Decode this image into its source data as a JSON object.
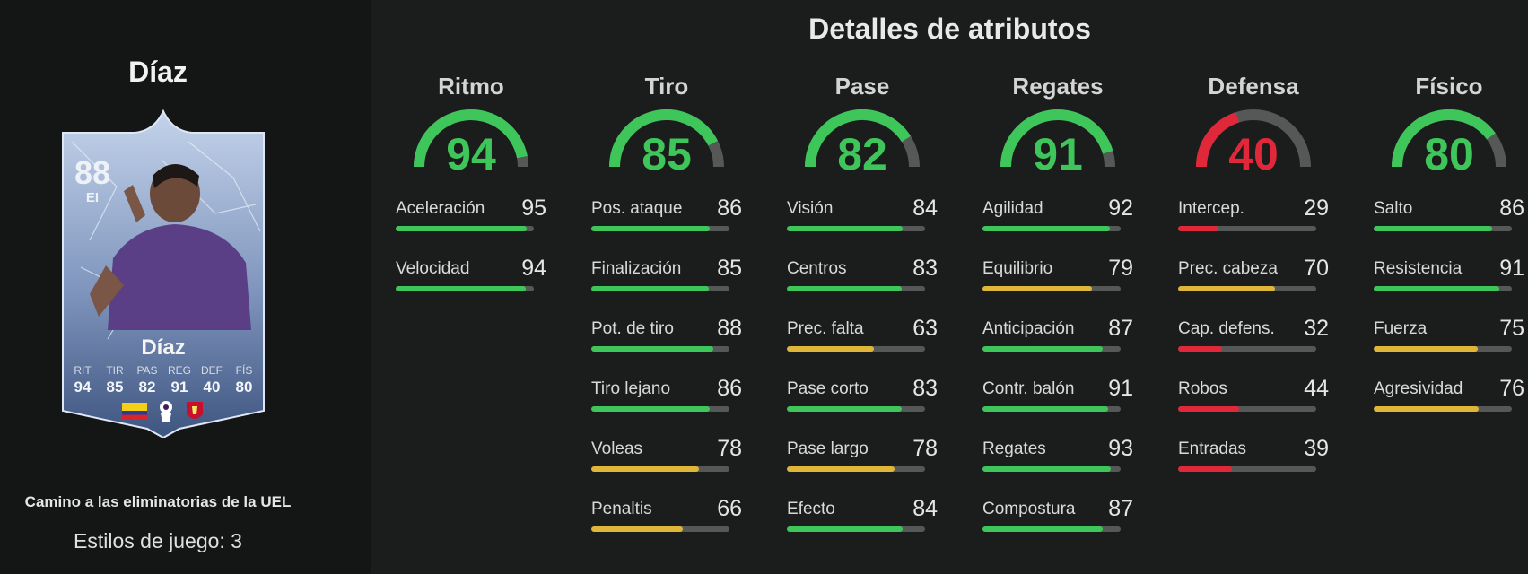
{
  "player": {
    "name": "Díaz",
    "rating": "88",
    "position": "EI",
    "card_stats": [
      {
        "label": "RIT",
        "value": "94"
      },
      {
        "label": "TIR",
        "value": "85"
      },
      {
        "label": "PAS",
        "value": "82"
      },
      {
        "label": "REG",
        "value": "91"
      },
      {
        "label": "DEF",
        "value": "40"
      },
      {
        "label": "FÍS",
        "value": "80"
      }
    ],
    "promo": "Camino a las eliminatorias de la UEL",
    "playstyles": "Estilos de juego: 3"
  },
  "section_title": "Detalles de atributos",
  "colors": {
    "green": "#3ec65a",
    "yellow": "#e0b63a",
    "red": "#e1283a",
    "track": "#555856"
  },
  "attributes": [
    {
      "name": "Ritmo",
      "value": 94,
      "stats": [
        {
          "label": "Aceleración",
          "value": 95
        },
        {
          "label": "Velocidad",
          "value": 94
        }
      ]
    },
    {
      "name": "Tiro",
      "value": 85,
      "stats": [
        {
          "label": "Pos. ataque",
          "value": 86
        },
        {
          "label": "Finalización",
          "value": 85
        },
        {
          "label": "Pot. de tiro",
          "value": 88
        },
        {
          "label": "Tiro lejano",
          "value": 86
        },
        {
          "label": "Voleas",
          "value": 78
        },
        {
          "label": "Penaltis",
          "value": 66
        }
      ]
    },
    {
      "name": "Pase",
      "value": 82,
      "stats": [
        {
          "label": "Visión",
          "value": 84
        },
        {
          "label": "Centros",
          "value": 83
        },
        {
          "label": "Prec. falta",
          "value": 63
        },
        {
          "label": "Pase corto",
          "value": 83
        },
        {
          "label": "Pase largo",
          "value": 78
        },
        {
          "label": "Efecto",
          "value": 84
        }
      ]
    },
    {
      "name": "Regates",
      "value": 91,
      "stats": [
        {
          "label": "Agilidad",
          "value": 92
        },
        {
          "label": "Equilibrio",
          "value": 79
        },
        {
          "label": "Anticipación",
          "value": 87
        },
        {
          "label": "Contr. balón",
          "value": 91
        },
        {
          "label": "Regates",
          "value": 93
        },
        {
          "label": "Compostura",
          "value": 87
        }
      ]
    },
    {
      "name": "Defensa",
      "value": 40,
      "stats": [
        {
          "label": "Intercep.",
          "value": 29
        },
        {
          "label": "Prec. cabeza",
          "value": 70
        },
        {
          "label": "Cap. defens.",
          "value": 32
        },
        {
          "label": "Robos",
          "value": 44
        },
        {
          "label": "Entradas",
          "value": 39
        }
      ]
    },
    {
      "name": "Físico",
      "value": 80,
      "stats": [
        {
          "label": "Salto",
          "value": 86
        },
        {
          "label": "Resistencia",
          "value": 91
        },
        {
          "label": "Fuerza",
          "value": 75
        },
        {
          "label": "Agresividad",
          "value": 76
        }
      ]
    }
  ]
}
